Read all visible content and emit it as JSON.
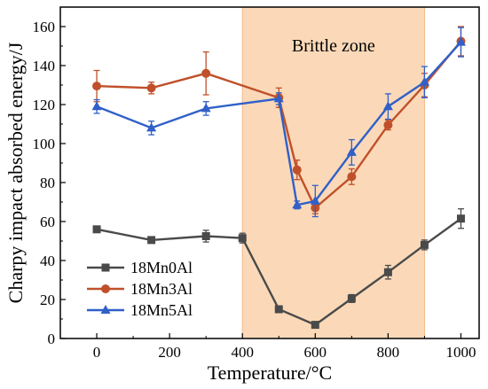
{
  "chart_data": {
    "type": "line",
    "title": "",
    "xlabel": "Temperature/°C",
    "ylabel": "Charpy impact absorbed energy/J",
    "xlim": [
      -100,
      1050
    ],
    "ylim": [
      0,
      170
    ],
    "xticks": [
      0,
      200,
      400,
      600,
      800,
      1000
    ],
    "yticks": [
      0,
      20,
      40,
      60,
      80,
      100,
      120,
      140,
      160
    ],
    "grid": false,
    "legend_position": "bottom-left",
    "shaded_region": {
      "x_start": 400,
      "x_end": 900,
      "label": "Brittle zone",
      "color": "#fbd9b8"
    },
    "series": [
      {
        "name": "18Mn0Al",
        "color": "#4a4a4a",
        "marker": "square",
        "x": [
          0,
          150,
          300,
          400,
          500,
          600,
          700,
          800,
          900,
          1000
        ],
        "y": [
          56,
          50.5,
          52.5,
          51.5,
          15,
          7,
          20.5,
          34,
          48,
          61.5
        ],
        "err": [
          1.5,
          1.5,
          3,
          2.5,
          1,
          1,
          2,
          3.5,
          2.5,
          5
        ]
      },
      {
        "name": "18Mn3Al",
        "color": "#c0502a",
        "marker": "circle",
        "x": [
          0,
          150,
          300,
          500,
          550,
          600,
          700,
          800,
          900,
          1000
        ],
        "y": [
          129.5,
          128.5,
          136,
          123.5,
          86.5,
          67,
          83,
          109.5,
          130,
          152.5
        ],
        "err": [
          8,
          3,
          11,
          5,
          5,
          3,
          4,
          2.5,
          6,
          7.5
        ]
      },
      {
        "name": "18Mn5Al",
        "color": "#3060c8",
        "marker": "triangle",
        "x": [
          0,
          150,
          300,
          500,
          550,
          600,
          700,
          800,
          900,
          1000
        ],
        "y": [
          119,
          108,
          118,
          123,
          68.5,
          70.5,
          95.5,
          119,
          131.5,
          152
        ],
        "err": [
          3.5,
          3.5,
          3.5,
          3,
          2,
          8,
          6.5,
          6.5,
          8,
          7.5
        ]
      }
    ]
  }
}
